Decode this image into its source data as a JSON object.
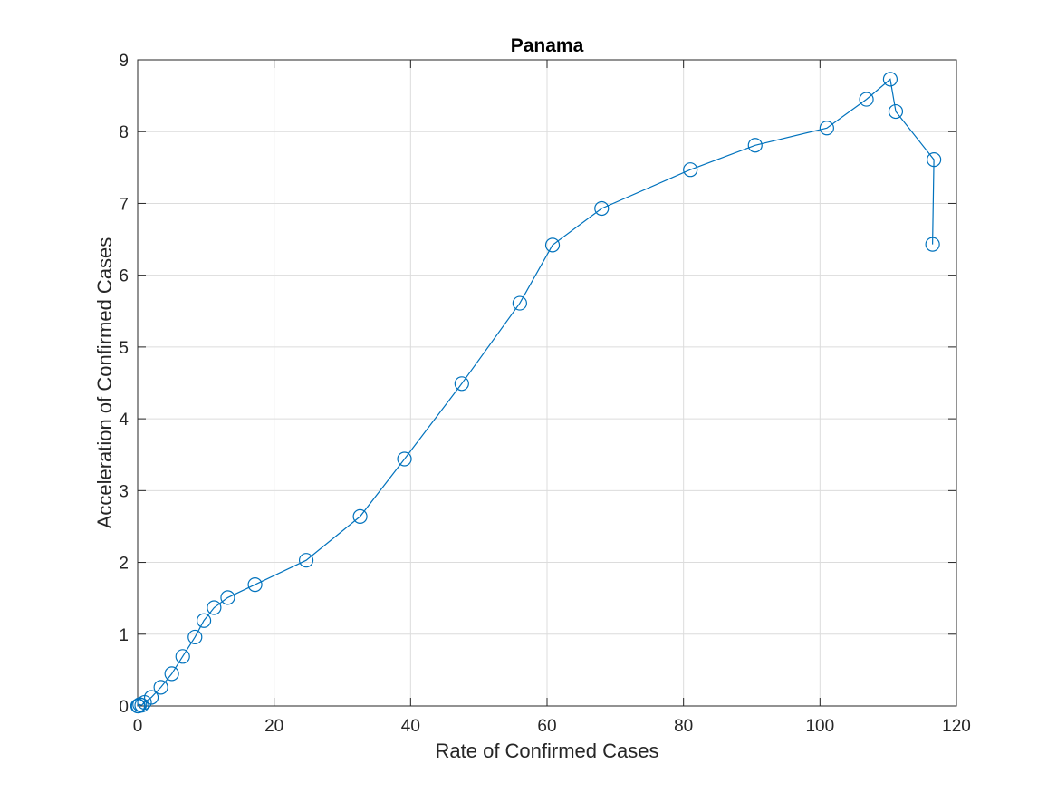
{
  "chart_data": {
    "type": "line",
    "title": "Panama",
    "xlabel": "Rate of Confirmed Cases",
    "ylabel": "Acceleration of Confirmed Cases",
    "xlim": [
      0,
      120
    ],
    "ylim": [
      0,
      9
    ],
    "xticks": [
      0,
      20,
      40,
      60,
      80,
      100,
      120
    ],
    "yticks": [
      0,
      1,
      2,
      3,
      4,
      5,
      6,
      7,
      8,
      9
    ],
    "grid": true,
    "marker": "circle",
    "colors": {
      "series": "#0072bd",
      "text": "#262626",
      "grid": "#dcdcdc",
      "background": "#ffffff"
    },
    "series": [
      {
        "name": "Panama",
        "x": [
          0.0,
          0.1,
          0.3,
          0.6,
          1.0,
          2.0,
          3.4,
          5.0,
          6.6,
          8.4,
          9.7,
          11.2,
          13.2,
          17.2,
          24.7,
          32.6,
          39.1,
          47.5,
          56.0,
          60.8,
          68.0,
          81.0,
          90.5,
          101.0,
          106.8,
          110.3,
          111.1,
          116.7,
          116.5
        ],
        "y": [
          0.0,
          0.0,
          0.02,
          0.01,
          0.05,
          0.12,
          0.26,
          0.45,
          0.69,
          0.96,
          1.19,
          1.37,
          1.51,
          1.69,
          2.03,
          2.64,
          3.44,
          4.49,
          5.61,
          6.42,
          6.93,
          7.47,
          7.81,
          8.05,
          8.45,
          8.73,
          8.28,
          7.61,
          6.43
        ]
      }
    ]
  }
}
